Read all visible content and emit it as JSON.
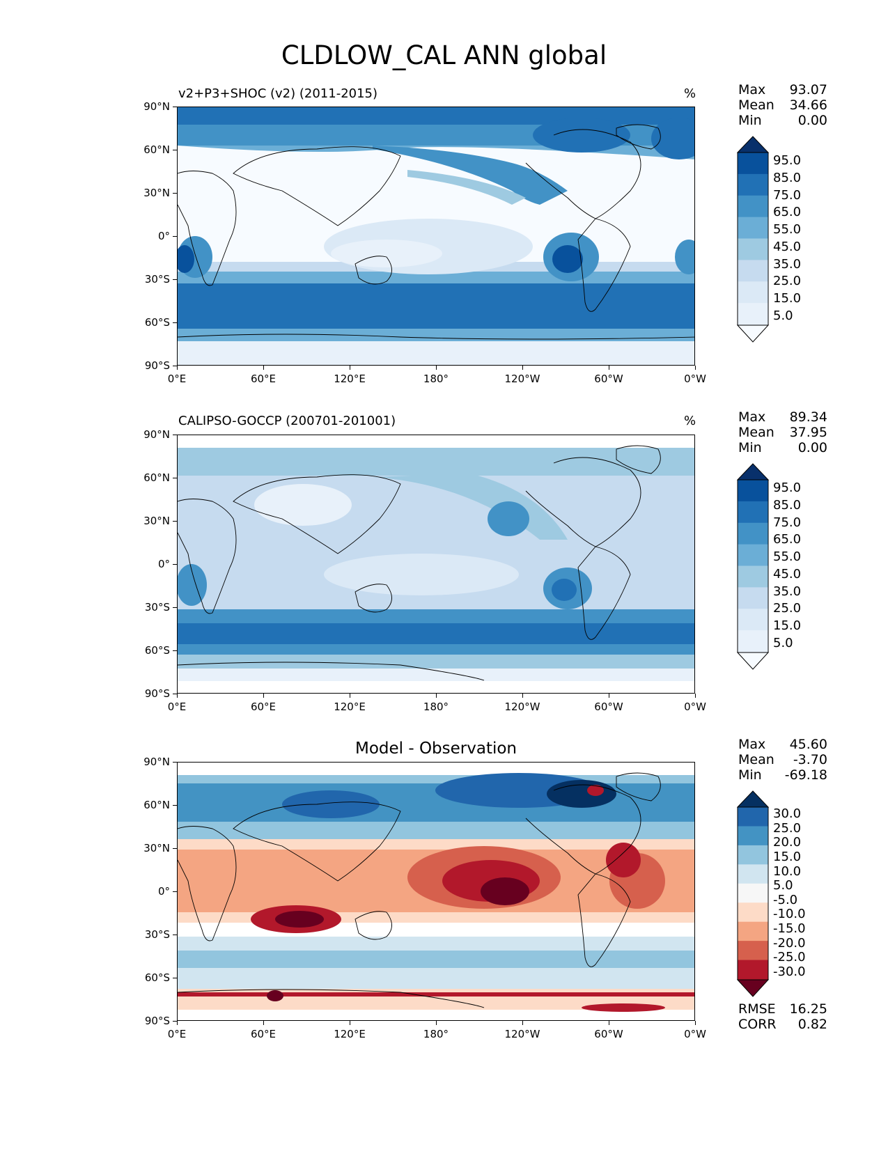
{
  "figure": {
    "title": "CLDLOW_CAL ANN global"
  },
  "axes": {
    "lat_labels": [
      "90°N",
      "60°N",
      "30°N",
      "0°",
      "30°S",
      "60°S",
      "90°S"
    ],
    "lon_labels": [
      "0°E",
      "60°E",
      "120°E",
      "180°",
      "120°W",
      "60°W",
      "0°W"
    ]
  },
  "panels": [
    {
      "title": "v2+P3+SHOC (v2) (2011-2015)",
      "units": "%",
      "stats": {
        "max_label": "Max",
        "max": "93.07",
        "mean_label": "Mean",
        "mean": "34.66",
        "min_label": "Min",
        "min": "0.00"
      },
      "colorbar": {
        "labels": [
          "95.0",
          "85.0",
          "75.0",
          "65.0",
          "55.0",
          "45.0",
          "35.0",
          "25.0",
          "15.0",
          "5.0"
        ],
        "colors": [
          "#08306b",
          "#08519c",
          "#2171b5",
          "#4292c6",
          "#6baed6",
          "#9ecae1",
          "#c6dbef",
          "#dbe9f6",
          "#e8f1fa",
          "#f7fbff"
        ]
      }
    },
    {
      "title": "CALIPSO-GOCCP (200701-201001)",
      "units": "%",
      "stats": {
        "max_label": "Max",
        "max": "89.34",
        "mean_label": "Mean",
        "mean": "37.95",
        "min_label": "Min",
        "min": "0.00"
      },
      "colorbar": {
        "labels": [
          "95.0",
          "85.0",
          "75.0",
          "65.0",
          "55.0",
          "45.0",
          "35.0",
          "25.0",
          "15.0",
          "5.0"
        ],
        "colors": [
          "#08306b",
          "#08519c",
          "#2171b5",
          "#4292c6",
          "#6baed6",
          "#9ecae1",
          "#c6dbef",
          "#dbe9f6",
          "#e8f1fa",
          "#f7fbff"
        ]
      }
    },
    {
      "title": "Model - Observation",
      "stats": {
        "max_label": "Max",
        "max": "45.60",
        "mean_label": "Mean",
        "mean": "-3.70",
        "min_label": "Min",
        "min": "-69.18"
      },
      "metrics": {
        "rmse_label": "RMSE",
        "rmse": "16.25",
        "corr_label": "CORR",
        "corr": "0.82"
      },
      "colorbar": {
        "labels": [
          "30.0",
          "25.0",
          "20.0",
          "15.0",
          "10.0",
          "5.0",
          "-5.0",
          "-10.0",
          "-15.0",
          "-20.0",
          "-25.0",
          "-30.0"
        ],
        "colors": [
          "#053061",
          "#2166ac",
          "#4393c3",
          "#92c5de",
          "#d1e5f0",
          "#f7f7f7",
          "#fddbc7",
          "#f4a582",
          "#d6604d",
          "#b2182b",
          "#67001f"
        ]
      }
    }
  ]
}
